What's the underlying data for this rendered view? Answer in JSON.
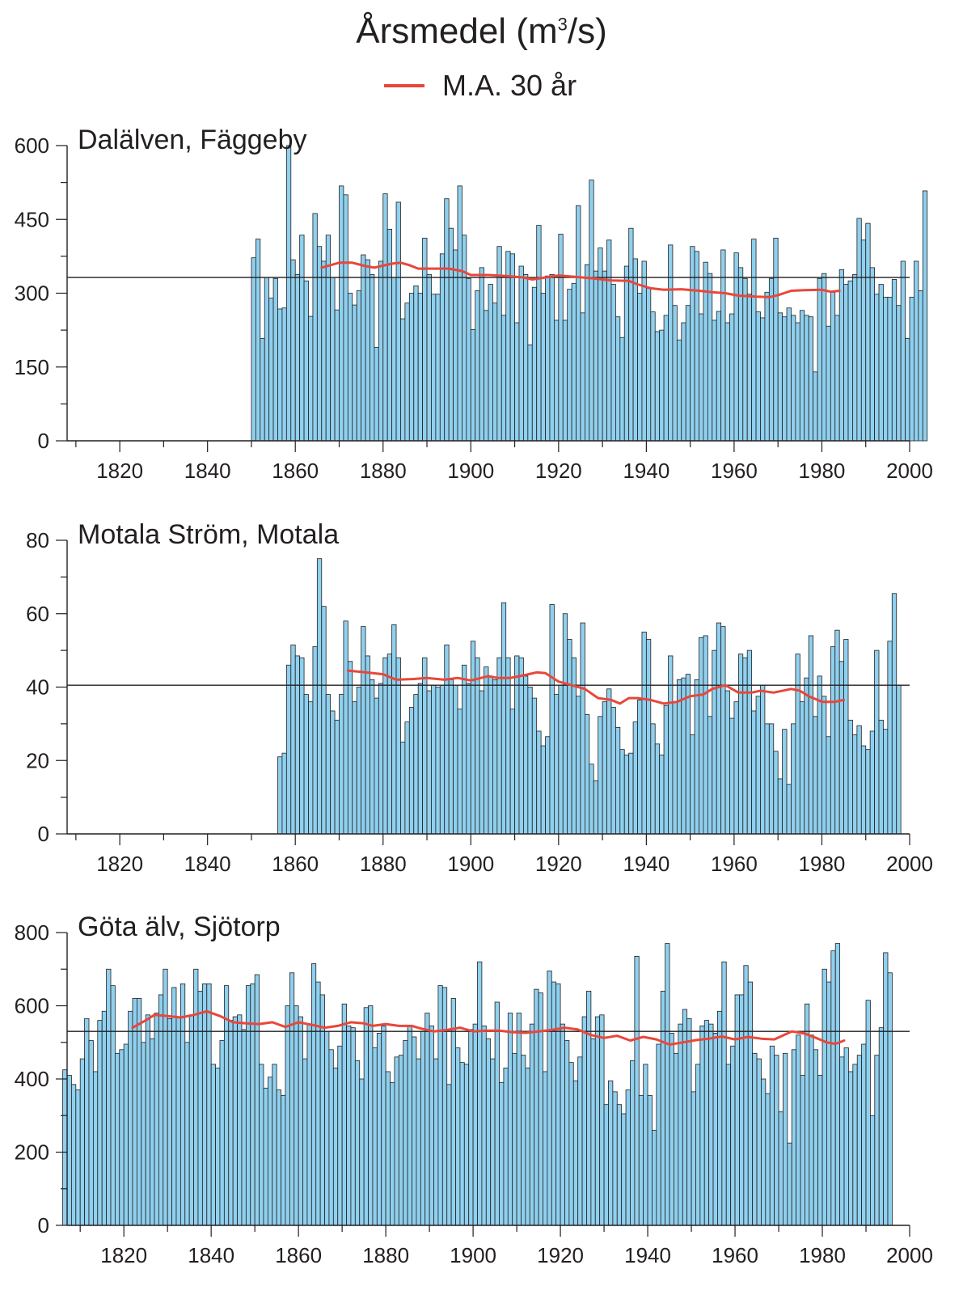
{
  "page": {
    "title_main": "Årsmedel (m",
    "title_sup": "3",
    "title_tail": "/s)",
    "legend_label": "M.A. 30 år"
  },
  "colors": {
    "bar_fill": "#8fd0ee",
    "bar_stroke": "#231f20",
    "ma_line": "#e8473b",
    "mean_line": "#231f20"
  },
  "chart_data": [
    {
      "type": "bar",
      "title": "Dalälven, Fäggeby",
      "x_start": 1851,
      "xlim": [
        1808,
        2000
      ],
      "x_ticks": [
        1820,
        1840,
        1860,
        1880,
        1900,
        1920,
        1940,
        1960,
        1980,
        2000
      ],
      "ylim": [
        0,
        600
      ],
      "y_ticks": [
        0,
        150,
        300,
        450,
        600
      ],
      "mean": 332,
      "values": [
        372,
        410,
        208,
        332,
        290,
        330,
        268,
        270,
        600,
        368,
        338,
        418,
        325,
        253,
        462,
        395,
        365,
        418,
        332,
        266,
        518,
        500,
        300,
        276,
        305,
        378,
        368,
        338,
        190,
        365,
        502,
        430,
        332,
        485,
        248,
        280,
        300,
        315,
        300,
        412,
        338,
        298,
        298,
        380,
        492,
        432,
        388,
        518,
        418,
        330,
        226,
        305,
        352,
        265,
        318,
        280,
        395,
        255,
        385,
        380,
        240,
        355,
        338,
        195,
        312,
        438,
        300,
        335,
        338,
        245,
        420,
        245,
        308,
        320,
        478,
        260,
        358,
        530,
        345,
        392,
        345,
        408,
        318,
        252,
        210,
        355,
        432,
        370,
        300,
        365,
        310,
        262,
        222,
        225,
        255,
        398,
        275,
        205,
        240,
        275,
        395,
        385,
        258,
        363,
        340,
        245,
        263,
        388,
        240,
        258,
        382,
        352,
        330,
        298,
        410,
        262,
        250,
        302,
        330,
        412,
        260,
        252,
        270,
        255,
        240,
        265,
        255,
        252,
        140,
        330,
        340,
        233,
        302,
        255,
        348,
        318,
        325,
        338,
        452,
        408,
        442,
        352,
        298,
        318,
        292,
        292,
        328,
        275,
        365,
        208,
        292,
        365,
        305,
        508
      ],
      "ma": [
        [
          1866,
          352
        ],
        [
          1870,
          362
        ],
        [
          1873,
          362
        ],
        [
          1876,
          355
        ],
        [
          1878,
          352
        ],
        [
          1882,
          360
        ],
        [
          1884,
          362
        ],
        [
          1886,
          357
        ],
        [
          1888,
          350
        ],
        [
          1892,
          350
        ],
        [
          1895,
          350
        ],
        [
          1898,
          345
        ],
        [
          1900,
          337
        ],
        [
          1904,
          337
        ],
        [
          1908,
          335
        ],
        [
          1912,
          332
        ],
        [
          1914,
          328
        ],
        [
          1917,
          332
        ],
        [
          1920,
          336
        ],
        [
          1924,
          333
        ],
        [
          1928,
          330
        ],
        [
          1932,
          326
        ],
        [
          1936,
          325
        ],
        [
          1938,
          318
        ],
        [
          1941,
          310
        ],
        [
          1944,
          307
        ],
        [
          1948,
          308
        ],
        [
          1952,
          305
        ],
        [
          1955,
          302
        ],
        [
          1958,
          300
        ],
        [
          1961,
          295
        ],
        [
          1965,
          293
        ],
        [
          1968,
          292
        ],
        [
          1970,
          296
        ],
        [
          1973,
          305
        ],
        [
          1976,
          306
        ],
        [
          1980,
          307
        ],
        [
          1982,
          303
        ],
        [
          1984,
          305
        ]
      ]
    },
    {
      "type": "bar",
      "title": "Motala Ström, Motala",
      "x_start": 1857,
      "xlim": [
        1808,
        2000
      ],
      "x_ticks": [
        1820,
        1840,
        1860,
        1880,
        1900,
        1920,
        1940,
        1960,
        1980,
        2000
      ],
      "ylim": [
        0,
        80
      ],
      "y_ticks": [
        0,
        20,
        40,
        60,
        80
      ],
      "mean": 40.5,
      "values": [
        21,
        22,
        46,
        51.5,
        48.5,
        48,
        38,
        36,
        51,
        75,
        62,
        38,
        33.5,
        31,
        38,
        58,
        47,
        36,
        40,
        56.5,
        48.5,
        42,
        37,
        41,
        48,
        49,
        57,
        48,
        25,
        30.5,
        34.5,
        38,
        41,
        48,
        39,
        40.5,
        40,
        40.5,
        51.5,
        42,
        40.5,
        34,
        46,
        41,
        52.5,
        48,
        39,
        45.5,
        43,
        42,
        48,
        63,
        48,
        34,
        48.5,
        48,
        43,
        40,
        37,
        28,
        24,
        26.5,
        62.5,
        38,
        40.5,
        60,
        53,
        48,
        37.5,
        57.5,
        32.5,
        19,
        14.5,
        32,
        36,
        39.5,
        34.5,
        29,
        23,
        21.5,
        22,
        30.5,
        36.5,
        55,
        53,
        30,
        24.5,
        21.5,
        35,
        48.5,
        36,
        42,
        42.5,
        43.5,
        27,
        42,
        53.5,
        54,
        32,
        50,
        57.5,
        56.5,
        39,
        31.5,
        36,
        49,
        48,
        50,
        33.5,
        37.5,
        40.5,
        30,
        30,
        22.5,
        15,
        28.5,
        13.5,
        30,
        49,
        36,
        42.5,
        54,
        32,
        43,
        37.5,
        26.5,
        51,
        55.5,
        47,
        53,
        31,
        27,
        29.5,
        24,
        23,
        28,
        50,
        31,
        28.5,
        52.5,
        65.5,
        40.5
      ],
      "ma": [
        [
          1872,
          44.5
        ],
        [
          1876,
          44
        ],
        [
          1880,
          43.5
        ],
        [
          1883,
          42
        ],
        [
          1887,
          42.2
        ],
        [
          1890,
          42.5
        ],
        [
          1894,
          42
        ],
        [
          1897,
          42.5
        ],
        [
          1900,
          41.8
        ],
        [
          1904,
          43
        ],
        [
          1906,
          42.5
        ],
        [
          1909,
          42.5
        ],
        [
          1912,
          43.2
        ],
        [
          1915,
          44
        ],
        [
          1917,
          43.8
        ],
        [
          1920,
          41.5
        ],
        [
          1923,
          40.5
        ],
        [
          1926,
          39.5
        ],
        [
          1929,
          37
        ],
        [
          1932,
          36.5
        ],
        [
          1934,
          35.5
        ],
        [
          1936,
          37
        ],
        [
          1938,
          37
        ],
        [
          1941,
          36.5
        ],
        [
          1944,
          35.5
        ],
        [
          1947,
          36
        ],
        [
          1950,
          37.5
        ],
        [
          1953,
          38
        ],
        [
          1955,
          39.5
        ],
        [
          1958,
          40.5
        ],
        [
          1961,
          38.5
        ],
        [
          1964,
          38.5
        ],
        [
          1966,
          39
        ],
        [
          1969,
          38.5
        ],
        [
          1973,
          39.5
        ],
        [
          1975,
          39
        ],
        [
          1977,
          37.5
        ],
        [
          1980,
          36
        ],
        [
          1983,
          36
        ],
        [
          1985,
          36.5
        ]
      ]
    },
    {
      "type": "bar",
      "title": "Göta älv, Sjötorp",
      "x_start": 1807,
      "xlim": [
        1807,
        2000
      ],
      "x_ticks": [
        1820,
        1840,
        1860,
        1880,
        1900,
        1920,
        1940,
        1960,
        1980,
        2000
      ],
      "ylim": [
        0,
        800
      ],
      "y_ticks": [
        0,
        200,
        400,
        600,
        800
      ],
      "mean": 530,
      "values": [
        425,
        410,
        385,
        370,
        455,
        565,
        505,
        420,
        560,
        585,
        700,
        655,
        470,
        480,
        495,
        585,
        620,
        620,
        500,
        575,
        510,
        580,
        630,
        700,
        565,
        650,
        570,
        660,
        500,
        575,
        700,
        640,
        660,
        660,
        440,
        430,
        505,
        655,
        560,
        570,
        575,
        535,
        655,
        660,
        685,
        440,
        375,
        405,
        440,
        370,
        355,
        600,
        690,
        600,
        570,
        455,
        550,
        715,
        665,
        630,
        530,
        480,
        430,
        490,
        605,
        545,
        540,
        450,
        400,
        595,
        600,
        485,
        525,
        545,
        420,
        390,
        460,
        465,
        505,
        545,
        515,
        455,
        530,
        580,
        545,
        455,
        655,
        650,
        385,
        620,
        485,
        445,
        440,
        535,
        550,
        720,
        545,
        510,
        455,
        610,
        390,
        430,
        580,
        470,
        580,
        465,
        430,
        550,
        645,
        635,
        420,
        695,
        665,
        660,
        550,
        505,
        445,
        395,
        460,
        570,
        640,
        510,
        570,
        575,
        330,
        395,
        365,
        330,
        305,
        370,
        450,
        735,
        355,
        440,
        355,
        260,
        495,
        640,
        770,
        525,
        470,
        550,
        590,
        565,
        365,
        440,
        545,
        560,
        550,
        525,
        585,
        720,
        440,
        490,
        630,
        630,
        710,
        665,
        470,
        455,
        400,
        360,
        490,
        465,
        310,
        470,
        225,
        480,
        520,
        410,
        605,
        520,
        480,
        410,
        700,
        665,
        750,
        770,
        460,
        485,
        420,
        440,
        465,
        495,
        615,
        300,
        465,
        540,
        745,
        690
      ],
      "ma": [
        [
          1822,
          540
        ],
        [
          1825,
          560
        ],
        [
          1827,
          575
        ],
        [
          1830,
          572
        ],
        [
          1833,
          568
        ],
        [
          1836,
          575
        ],
        [
          1839,
          585
        ],
        [
          1842,
          572
        ],
        [
          1845,
          555
        ],
        [
          1848,
          552
        ],
        [
          1851,
          550
        ],
        [
          1854,
          555
        ],
        [
          1857,
          542
        ],
        [
          1860,
          555
        ],
        [
          1863,
          548
        ],
        [
          1866,
          540
        ],
        [
          1869,
          545
        ],
        [
          1872,
          555
        ],
        [
          1875,
          552
        ],
        [
          1877,
          545
        ],
        [
          1880,
          550
        ],
        [
          1883,
          545
        ],
        [
          1886,
          545
        ],
        [
          1888,
          538
        ],
        [
          1891,
          530
        ],
        [
          1894,
          534
        ],
        [
          1897,
          540
        ],
        [
          1900,
          530
        ],
        [
          1903,
          532
        ],
        [
          1906,
          532
        ],
        [
          1909,
          528
        ],
        [
          1912,
          526
        ],
        [
          1915,
          530
        ],
        [
          1918,
          534
        ],
        [
          1921,
          540
        ],
        [
          1924,
          535
        ],
        [
          1927,
          520
        ],
        [
          1930,
          512
        ],
        [
          1933,
          518
        ],
        [
          1936,
          505
        ],
        [
          1939,
          515
        ],
        [
          1942,
          508
        ],
        [
          1945,
          494
        ],
        [
          1948,
          500
        ],
        [
          1951,
          506
        ],
        [
          1954,
          510
        ],
        [
          1957,
          516
        ],
        [
          1960,
          508
        ],
        [
          1963,
          515
        ],
        [
          1966,
          510
        ],
        [
          1969,
          508
        ],
        [
          1973,
          530
        ],
        [
          1976,
          524
        ],
        [
          1979,
          510
        ],
        [
          1981,
          500
        ],
        [
          1983,
          496
        ],
        [
          1985,
          505
        ]
      ]
    }
  ]
}
